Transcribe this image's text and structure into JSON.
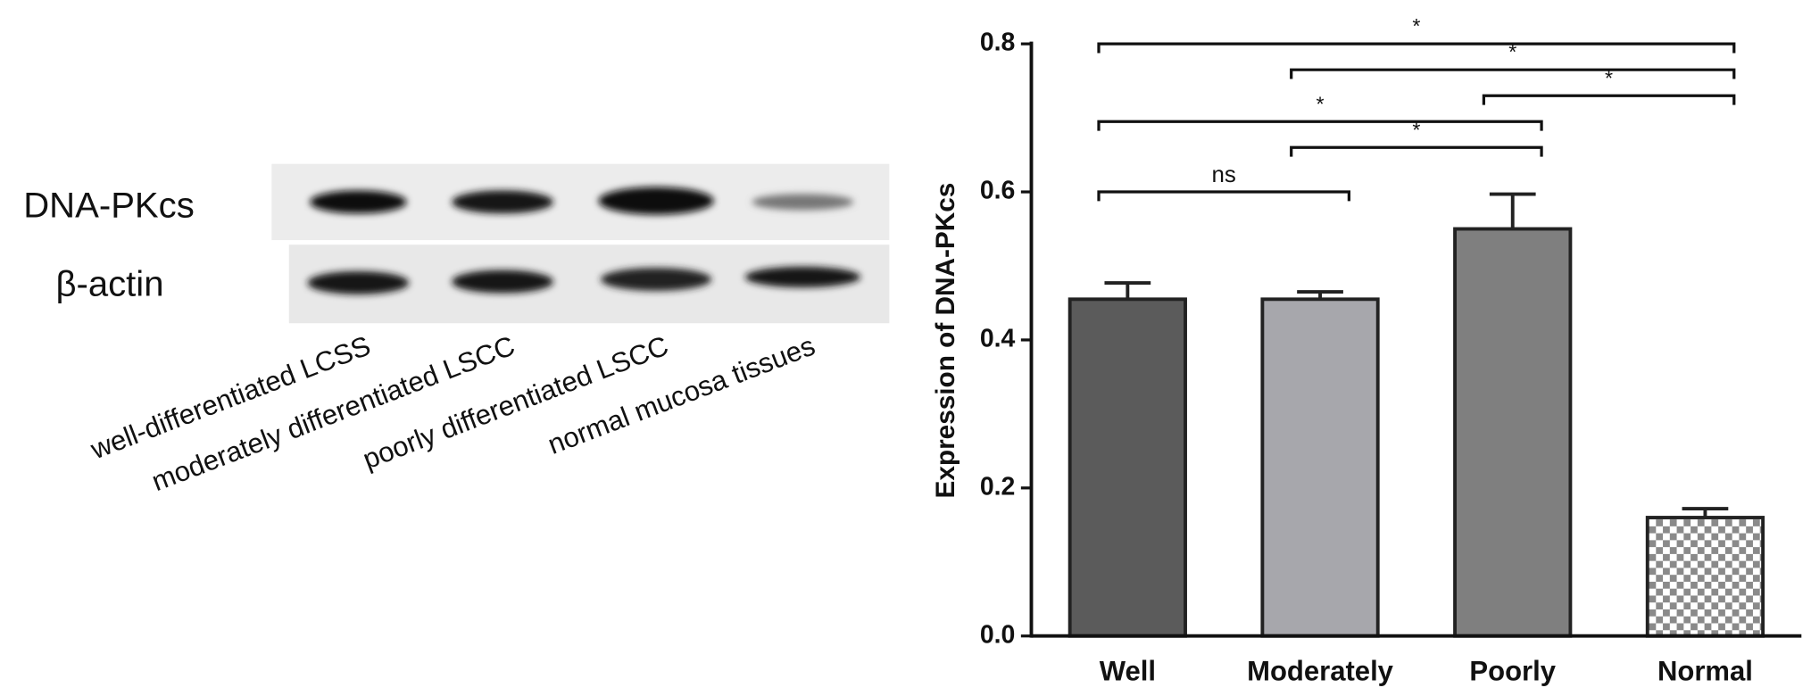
{
  "blot": {
    "rows": [
      "DNA-PKcs",
      "β-actin"
    ],
    "lanes": [
      "well-differentiated LCSS",
      "moderately differentiated LSCC",
      "poorly differentiated LSCC",
      "normal mucosa tissues"
    ]
  },
  "chart_data": {
    "type": "bar",
    "y_label": "Expression of DNA-PKcs",
    "categories": [
      "Well",
      "Moderately",
      "Poorly",
      "Normal"
    ],
    "values": [
      0.455,
      0.455,
      0.55,
      0.16
    ],
    "errors": [
      0.022,
      0.01,
      0.047,
      0.012
    ],
    "colors": [
      "#5b5b5b",
      "#a7a7ac",
      "#7f7f7f",
      "#8a8a8a"
    ],
    "checkered": [
      false,
      false,
      false,
      true
    ],
    "ylim": [
      0,
      0.8
    ],
    "yticks": [
      {
        "value": 0,
        "label": "0.0"
      },
      0.2,
      0.4,
      0.6,
      0.8
    ],
    "annotations": [
      {
        "from": 0,
        "to": 3,
        "y": 0.8,
        "label": "*"
      },
      {
        "from": 1,
        "to": 3,
        "y": 0.765,
        "label": "*"
      },
      {
        "from": 2,
        "to": 3,
        "y": 0.73,
        "label": "*"
      },
      {
        "from": 0,
        "to": 2,
        "y": 0.695,
        "label": "*"
      },
      {
        "from": 1,
        "to": 2,
        "y": 0.66,
        "label": "*"
      },
      {
        "from": 0,
        "to": 1,
        "y": 0.6,
        "label": "ns"
      }
    ]
  }
}
